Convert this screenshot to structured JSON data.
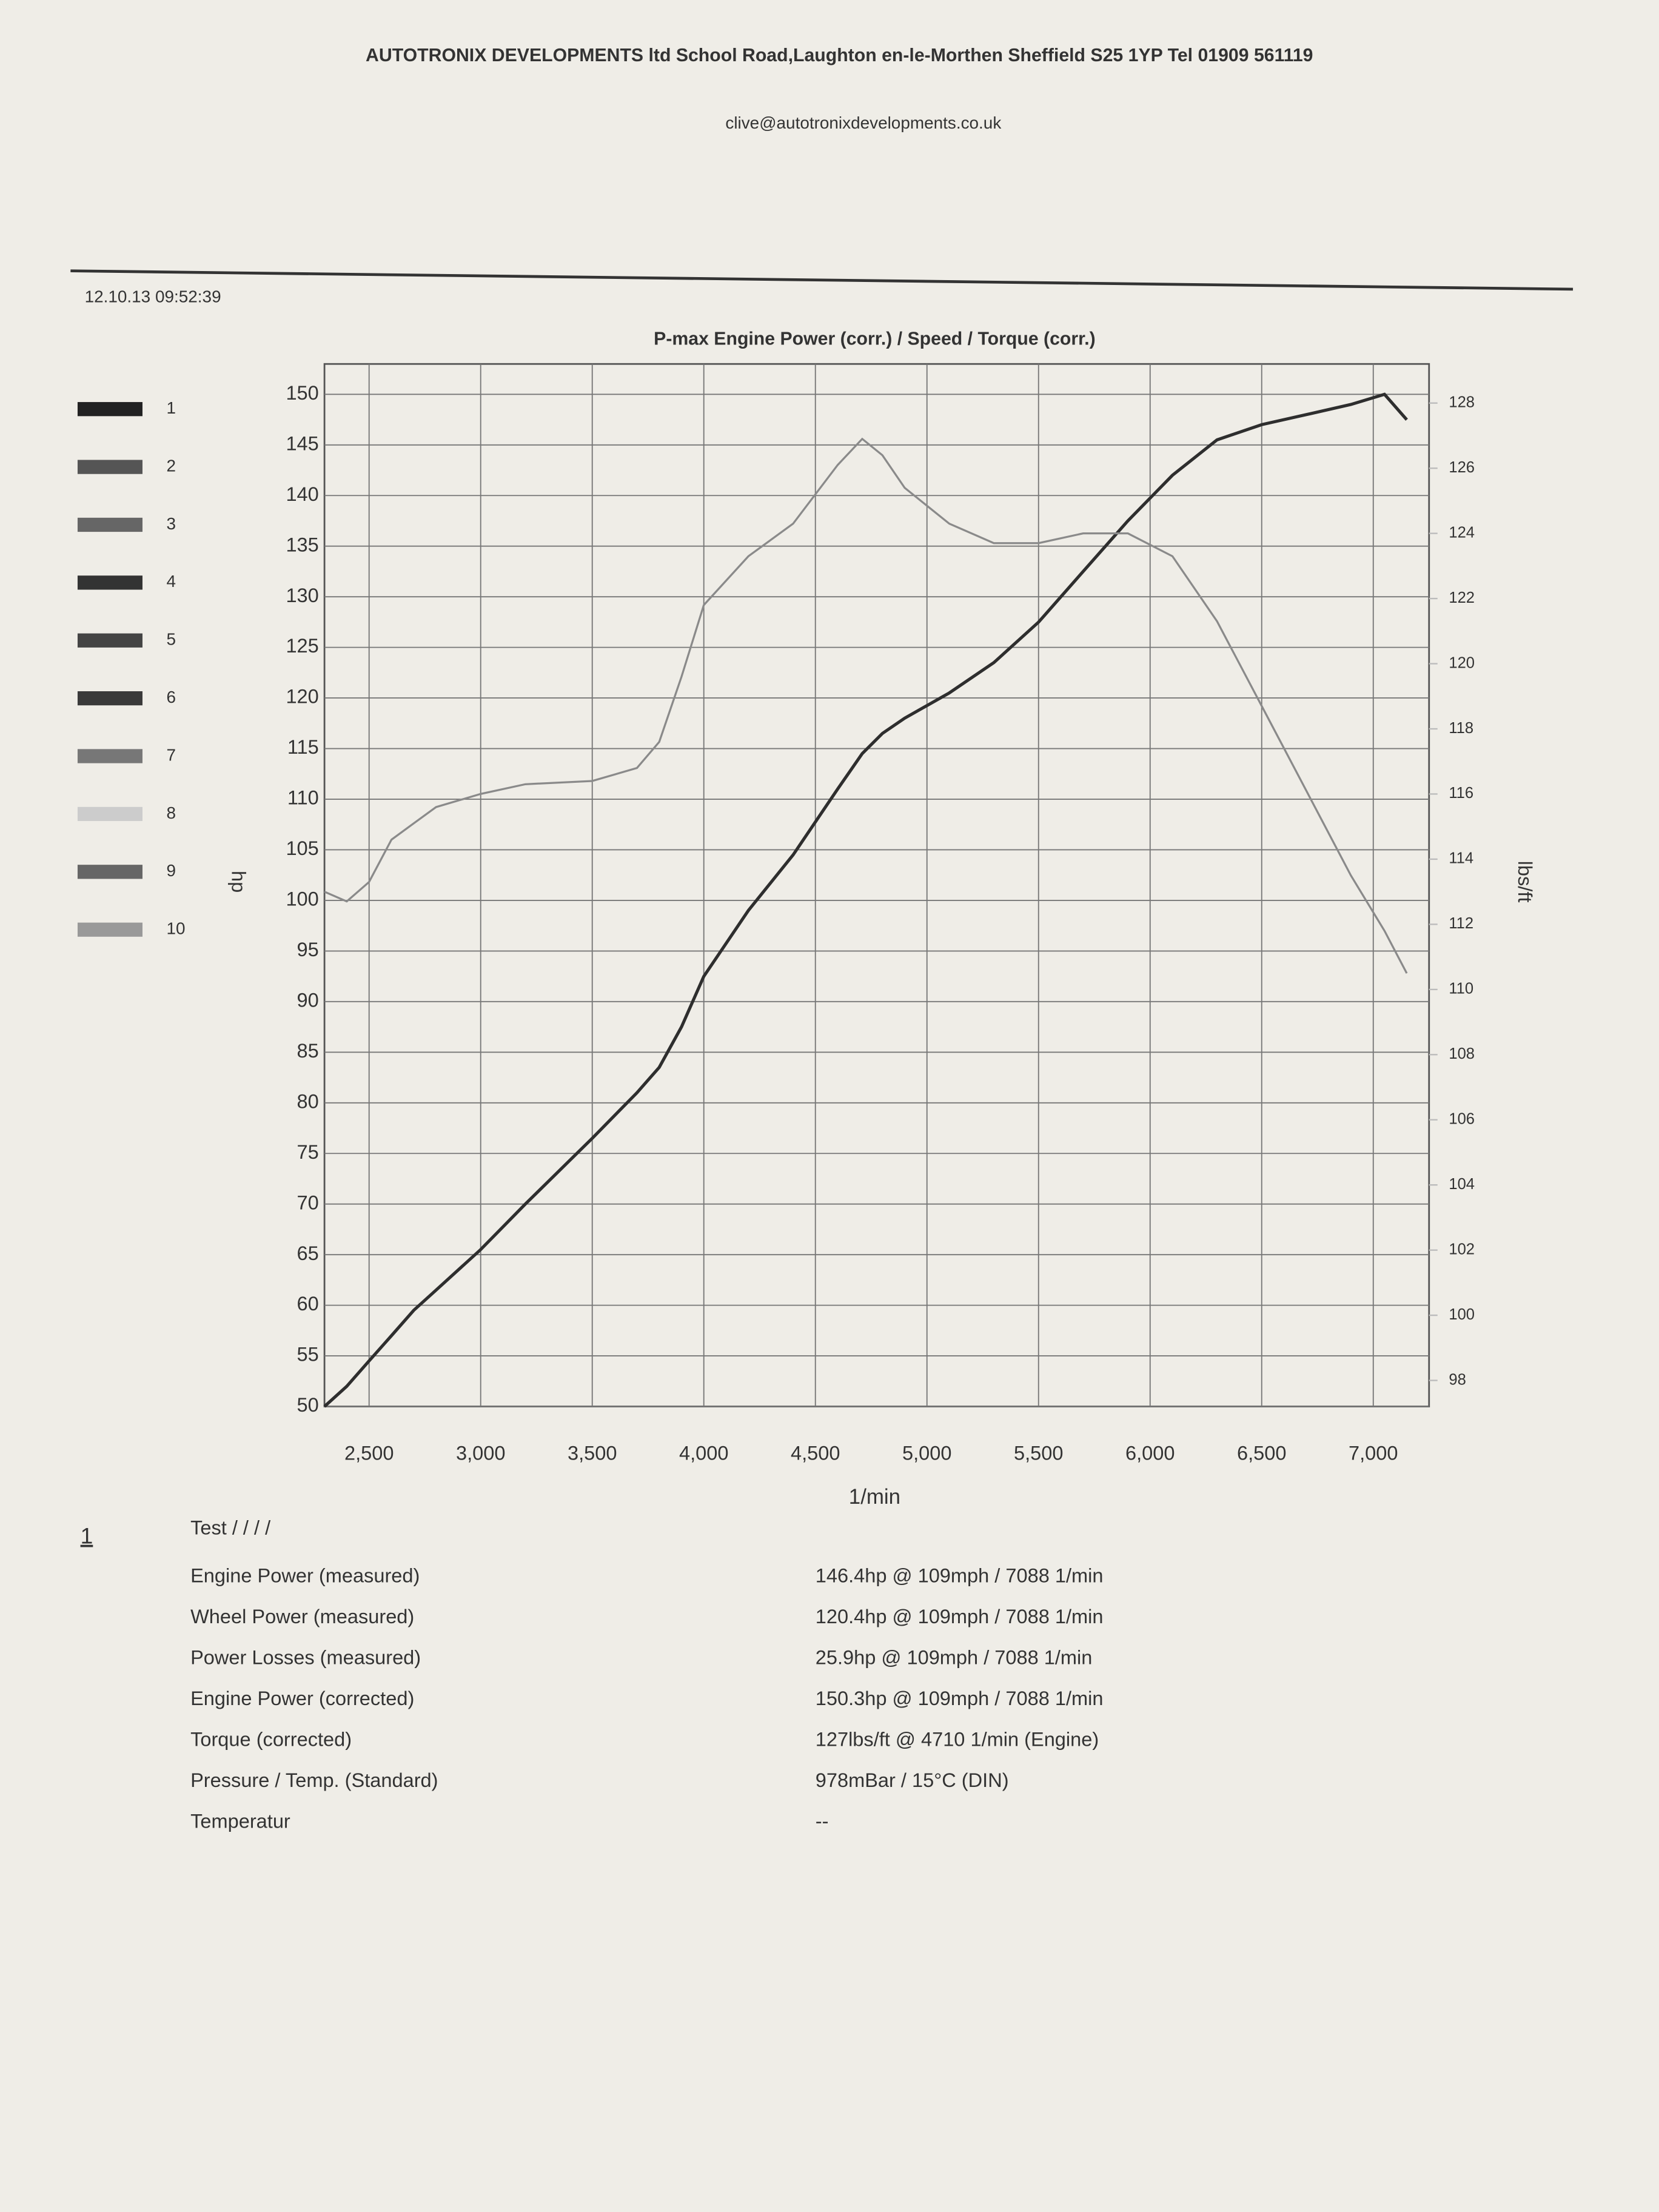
{
  "header": {
    "company": "AUTOTRONIX DEVELOPMENTS ltd School Road,Laughton en-le-Morthen Sheffield S25 1YP Tel 01909 561119",
    "email": "clive@autotronixdevelopments.co.uk",
    "timestamp": "12.10.13 09:52:39"
  },
  "run_legend": [
    "1",
    "2",
    "3",
    "4",
    "5",
    "6",
    "7",
    "8",
    "9",
    "10"
  ],
  "chart_data": {
    "type": "line",
    "title": "P-max Engine Power  (corr.) / Speed / Torque (corr.)",
    "x_label": "1/min",
    "y_label": "hp",
    "y2_label": "lbs/ft",
    "x": [
      2300,
      2400,
      2500,
      2600,
      2700,
      2800,
      3000,
      3200,
      3500,
      3700,
      3800,
      3900,
      4000,
      4200,
      4400,
      4600,
      4710,
      4800,
      4900,
      5100,
      5300,
      5500,
      5700,
      5900,
      6100,
      6300,
      6500,
      6700,
      6900,
      7050,
      7150
    ],
    "series": [
      {
        "name": "1",
        "color": "#2e2e2e",
        "values": [
          50,
          52,
          54.5,
          57,
          59.5,
          61.5,
          65.5,
          70,
          76.5,
          81,
          83.5,
          87.5,
          92.5,
          99,
          104.5,
          111,
          114.5,
          116.5,
          118,
          120.5,
          123.5,
          127.5,
          132.5,
          137.5,
          142,
          145.5,
          147,
          148,
          149,
          150,
          147.5
        ]
      },
      {
        "name": "1",
        "color": "#8a8a8a",
        "axis": "y2",
        "values": [
          113.0,
          112.7,
          113.3,
          114.6,
          115.1,
          115.6,
          116.0,
          116.3,
          116.4,
          116.8,
          117.6,
          119.6,
          121.8,
          123.3,
          124.3,
          126.1,
          126.9,
          126.4,
          125.4,
          124.3,
          123.7,
          123.7,
          124.0,
          124.0,
          123.3,
          121.3,
          118.7,
          116.1,
          113.5,
          111.8,
          110.5
        ]
      }
    ],
    "xlim": [
      2300,
      7250
    ],
    "xticks": [
      {
        "value": 2500,
        "label": "2,500"
      },
      {
        "value": 3000,
        "label": "3,000"
      },
      {
        "value": 3500,
        "label": "3,500"
      },
      {
        "value": 4000,
        "label": "4,000"
      },
      {
        "value": 4500,
        "label": "4,500"
      },
      {
        "value": 5000,
        "label": "5,000"
      },
      {
        "value": 5500,
        "label": "5,500"
      },
      {
        "value": 6000,
        "label": "6,000"
      },
      {
        "value": 6500,
        "label": "6,500"
      },
      {
        "value": 7000,
        "label": "7,000"
      }
    ],
    "ylim": [
      50,
      153
    ],
    "yticks": [
      50,
      55,
      60,
      65,
      70,
      75,
      80,
      85,
      90,
      95,
      100,
      105,
      110,
      115,
      120,
      125,
      130,
      135,
      140,
      145,
      150
    ],
    "y2lim": [
      97.2,
      129.2
    ],
    "y2ticks": [
      98,
      100,
      102,
      104,
      106,
      108,
      110,
      112,
      114,
      116,
      118,
      120,
      122,
      124,
      126,
      128
    ],
    "grid": true
  },
  "results": {
    "run": "1",
    "test": "Test / / / /",
    "rows": [
      [
        "Engine Power (measured)",
        "146.4hp @ 109mph / 7088 1/min"
      ],
      [
        "Wheel Power (measured)",
        "120.4hp @ 109mph / 7088 1/min"
      ],
      [
        "Power Losses (measured)",
        "25.9hp @ 109mph / 7088 1/min"
      ],
      [
        "Engine Power (corrected)",
        "150.3hp @ 109mph / 7088 1/min"
      ],
      [
        "Torque (corrected)",
        "127lbs/ft @ 4710 1/min (Engine)"
      ],
      [
        "Pressure / Temp. (Standard)",
        "978mBar / 15°C (DIN)"
      ],
      [
        "Temperatur",
        "--"
      ]
    ]
  }
}
